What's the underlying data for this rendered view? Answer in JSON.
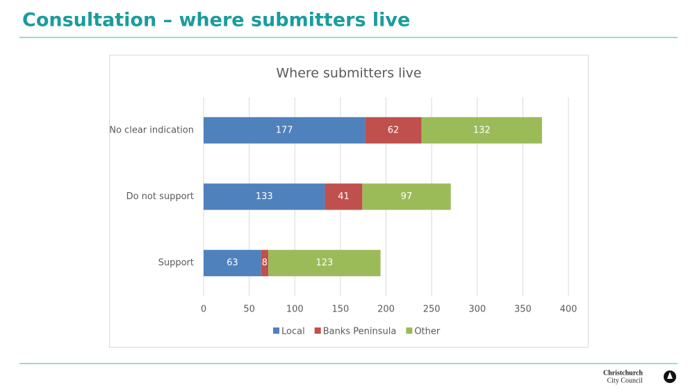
{
  "slide_title": "Consultation – where submitters live",
  "chart_data": {
    "type": "hbar-stacked",
    "title": "Where submitters live",
    "categories": [
      "No clear indication",
      "Do not support",
      "Support"
    ],
    "series": [
      {
        "name": "Local",
        "color": "#4f81bd",
        "values": [
          177,
          133,
          63
        ]
      },
      {
        "name": "Banks Peninsula",
        "color": "#c0504d",
        "values": [
          62,
          41,
          8
        ]
      },
      {
        "name": "Other",
        "color": "#9bbb59",
        "values": [
          132,
          97,
          123
        ]
      }
    ],
    "xlim": [
      0,
      400
    ],
    "xticks": [
      0,
      50,
      100,
      150,
      200,
      250,
      300,
      350,
      400
    ],
    "grid": true,
    "legend": "bottom"
  },
  "logo": {
    "line1": "Christchurch",
    "line2": "City Council"
  }
}
